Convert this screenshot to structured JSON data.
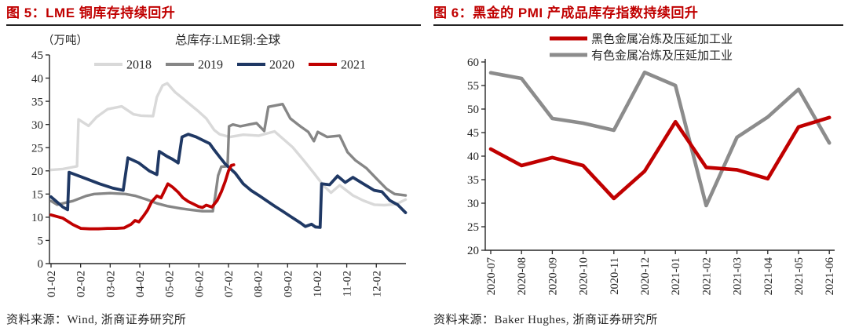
{
  "figures": [
    {
      "title": "图 5：LME 铜库存持续回升",
      "source": "资料来源：Wind, 浙商证券研究所"
    },
    {
      "title": "图 6：黑金的 PMI 产成品库存指数持续回升",
      "source": "资料来源：Baker Hughes, 浙商证券研究所"
    }
  ],
  "colors": {
    "title_red": "#c00000",
    "axis": "#262626",
    "rule": "#232323"
  },
  "chart_data": [
    {
      "type": "line",
      "title": "总库存:LME铜:全球",
      "unit_label": "（万吨）",
      "ylabel": "",
      "xlabel": "",
      "ylim": [
        0,
        45
      ],
      "ytick_step": 5,
      "grid": false,
      "legend_position": "top",
      "x_axis_unit": "month-day, weekly data across one year",
      "xtick_labels": [
        "01-02",
        "02-02",
        "03-02",
        "04-02",
        "05-02",
        "06-02",
        "07-02",
        "08-02",
        "09-02",
        "10-02",
        "11-02",
        "12-02"
      ],
      "x_range_months": [
        1,
        13
      ],
      "series": [
        {
          "name": "2018",
          "color": "#d9d9d9",
          "width": 3.4,
          "points": [
            [
              1,
              20.2
            ],
            [
              1.4,
              20.4
            ],
            [
              1.8,
              20.9
            ],
            [
              1.88,
              21
            ],
            [
              1.93,
              31.1
            ],
            [
              2.27,
              29.7
            ],
            [
              2.54,
              31.6
            ],
            [
              2.91,
              33.3
            ],
            [
              3.39,
              33.9
            ],
            [
              3.79,
              32.2
            ],
            [
              4.05,
              31.9
            ],
            [
              4.45,
              31.8
            ],
            [
              4.58,
              35.9
            ],
            [
              4.77,
              38.4
            ],
            [
              4.93,
              38.9
            ],
            [
              5.19,
              37
            ],
            [
              5.46,
              35.6
            ],
            [
              5.72,
              34.2
            ],
            [
              5.99,
              32.8
            ],
            [
              6.25,
              31.3
            ],
            [
              6.52,
              28.8
            ],
            [
              6.7,
              27.9
            ],
            [
              7.05,
              27.3
            ],
            [
              7.5,
              27.8
            ],
            [
              8.03,
              27.6
            ],
            [
              8.56,
              28.5
            ],
            [
              9.17,
              25.1
            ],
            [
              9.54,
              22.3
            ],
            [
              9.89,
              19.5
            ],
            [
              10.23,
              16.7
            ],
            [
              10.47,
              15.3
            ],
            [
              10.76,
              16.9
            ],
            [
              11.21,
              14.7
            ],
            [
              11.56,
              13.6
            ],
            [
              11.93,
              12.7
            ],
            [
              12.27,
              12.6
            ],
            [
              12.67,
              12.8
            ],
            [
              12.99,
              13.8
            ]
          ]
        },
        {
          "name": "2019",
          "color": "#868686",
          "width": 3.4,
          "points": [
            [
              1,
              13.5
            ],
            [
              1.21,
              12.7
            ],
            [
              1.74,
              13.5
            ],
            [
              2.19,
              14.6
            ],
            [
              2.46,
              15
            ],
            [
              3,
              15.2
            ],
            [
              3.52,
              15
            ],
            [
              3.86,
              14.6
            ],
            [
              4.24,
              13.8
            ],
            [
              4.58,
              13
            ],
            [
              4.93,
              12.4
            ],
            [
              5.38,
              11.9
            ],
            [
              5.72,
              11.6
            ],
            [
              6.12,
              11.3
            ],
            [
              6.47,
              11.3
            ],
            [
              6.55,
              14.4
            ],
            [
              6.65,
              19
            ],
            [
              6.76,
              20.9
            ],
            [
              6.97,
              21
            ],
            [
              7.02,
              29.6
            ],
            [
              7.15,
              30
            ],
            [
              7.4,
              29.6
            ],
            [
              7.7,
              30
            ],
            [
              7.95,
              30.3
            ],
            [
              8.21,
              28.6
            ],
            [
              8.35,
              33.8
            ],
            [
              8.83,
              34.4
            ],
            [
              9.09,
              31.3
            ],
            [
              9.43,
              29.6
            ],
            [
              9.7,
              28.4
            ],
            [
              9.89,
              26.4
            ],
            [
              10.02,
              28.4
            ],
            [
              10.34,
              27.3
            ],
            [
              10.76,
              27.6
            ],
            [
              11.03,
              24
            ],
            [
              11.29,
              22.3
            ],
            [
              11.66,
              20.6
            ],
            [
              12.01,
              18.3
            ],
            [
              12.35,
              16.1
            ],
            [
              12.62,
              15
            ],
            [
              12.99,
              14.7
            ]
          ]
        },
        {
          "name": "2020",
          "color": "#1f3864",
          "width": 3.8,
          "points": [
            [
              1,
              14.4
            ],
            [
              1.4,
              12.2
            ],
            [
              1.56,
              11.6
            ],
            [
              1.61,
              19.7
            ],
            [
              2.19,
              18.3
            ],
            [
              2.64,
              17.2
            ],
            [
              3.07,
              16.3
            ],
            [
              3.44,
              15.8
            ],
            [
              3.6,
              22.8
            ],
            [
              3.97,
              21.7
            ],
            [
              4.32,
              20
            ],
            [
              4.58,
              19.2
            ],
            [
              4.66,
              24.2
            ],
            [
              4.93,
              23.1
            ],
            [
              5.11,
              22.5
            ],
            [
              5.3,
              21.7
            ],
            [
              5.43,
              27.3
            ],
            [
              5.64,
              27.9
            ],
            [
              5.91,
              27.3
            ],
            [
              6.17,
              26.5
            ],
            [
              6.36,
              25.9
            ],
            [
              6.52,
              24.5
            ],
            [
              6.7,
              23
            ],
            [
              6.89,
              21.5
            ],
            [
              7.23,
              19.5
            ],
            [
              7.5,
              17.2
            ],
            [
              7.76,
              15.8
            ],
            [
              8.03,
              14.7
            ],
            [
              8.56,
              12.4
            ],
            [
              8.83,
              11.3
            ],
            [
              9.09,
              10.2
            ],
            [
              9.43,
              8.8
            ],
            [
              9.6,
              8
            ],
            [
              9.81,
              8.5
            ],
            [
              9.94,
              7.9
            ],
            [
              10.1,
              7.8
            ],
            [
              10.15,
              17.2
            ],
            [
              10.42,
              17
            ],
            [
              10.69,
              18.9
            ],
            [
              10.95,
              17.5
            ],
            [
              11.21,
              18.6
            ],
            [
              11.56,
              17.2
            ],
            [
              11.93,
              15.8
            ],
            [
              12.19,
              15.5
            ],
            [
              12.46,
              13.6
            ],
            [
              12.72,
              12.7
            ],
            [
              12.99,
              11
            ]
          ]
        },
        {
          "name": "2021",
          "color": "#c00000",
          "width": 3.8,
          "points": [
            [
              1,
              10.5
            ],
            [
              1.4,
              9.8
            ],
            [
              1.74,
              8.4
            ],
            [
              2.01,
              7.6
            ],
            [
              2.3,
              7.5
            ],
            [
              2.6,
              7.5
            ],
            [
              2.9,
              7.6
            ],
            [
              3.2,
              7.6
            ],
            [
              3.47,
              7.7
            ],
            [
              3.71,
              8.5
            ],
            [
              3.84,
              9.3
            ],
            [
              3.97,
              9
            ],
            [
              4.13,
              10.3
            ],
            [
              4.26,
              11.5
            ],
            [
              4.4,
              13.3
            ],
            [
              4.58,
              14.6
            ],
            [
              4.72,
              14.2
            ],
            [
              4.82,
              15.5
            ],
            [
              4.95,
              17.2
            ],
            [
              5.11,
              16.5
            ],
            [
              5.3,
              15.4
            ],
            [
              5.46,
              14.2
            ],
            [
              5.64,
              13.4
            ],
            [
              5.83,
              12.8
            ],
            [
              5.99,
              12.3
            ],
            [
              6.12,
              12.1
            ],
            [
              6.25,
              12.6
            ],
            [
              6.44,
              12.2
            ],
            [
              6.62,
              13.6
            ],
            [
              6.76,
              15.5
            ],
            [
              6.89,
              17.7
            ],
            [
              7,
              20
            ],
            [
              7.1,
              21.2
            ],
            [
              7.18,
              21.3
            ]
          ]
        }
      ]
    },
    {
      "type": "line",
      "title": "",
      "ylabel": "",
      "xlabel": "",
      "ylim": [
        20,
        60
      ],
      "ytick_step": 5,
      "grid": false,
      "legend_position": "top",
      "categories": [
        "2020-07",
        "2020-08",
        "2020-09",
        "2020-10",
        "2020-11",
        "2020-12",
        "2021-01",
        "2021-02",
        "2021-03",
        "2021-04",
        "2021-05",
        "2021-06"
      ],
      "series": [
        {
          "name": "黑色金属冶炼及压延加工业",
          "color": "#c00000",
          "width": 4.6,
          "values": [
            41.5,
            38.0,
            39.7,
            38.0,
            31.0,
            36.8,
            47.3,
            37.6,
            37.1,
            35.2,
            46.2,
            48.2
          ]
        },
        {
          "name": "有色金属冶炼及压延加工业",
          "color": "#8c8c8c",
          "width": 4.6,
          "values": [
            57.7,
            56.5,
            48.0,
            47.0,
            45.5,
            57.8,
            55.0,
            29.5,
            44.0,
            48.3,
            54.2,
            42.8
          ]
        }
      ]
    }
  ]
}
